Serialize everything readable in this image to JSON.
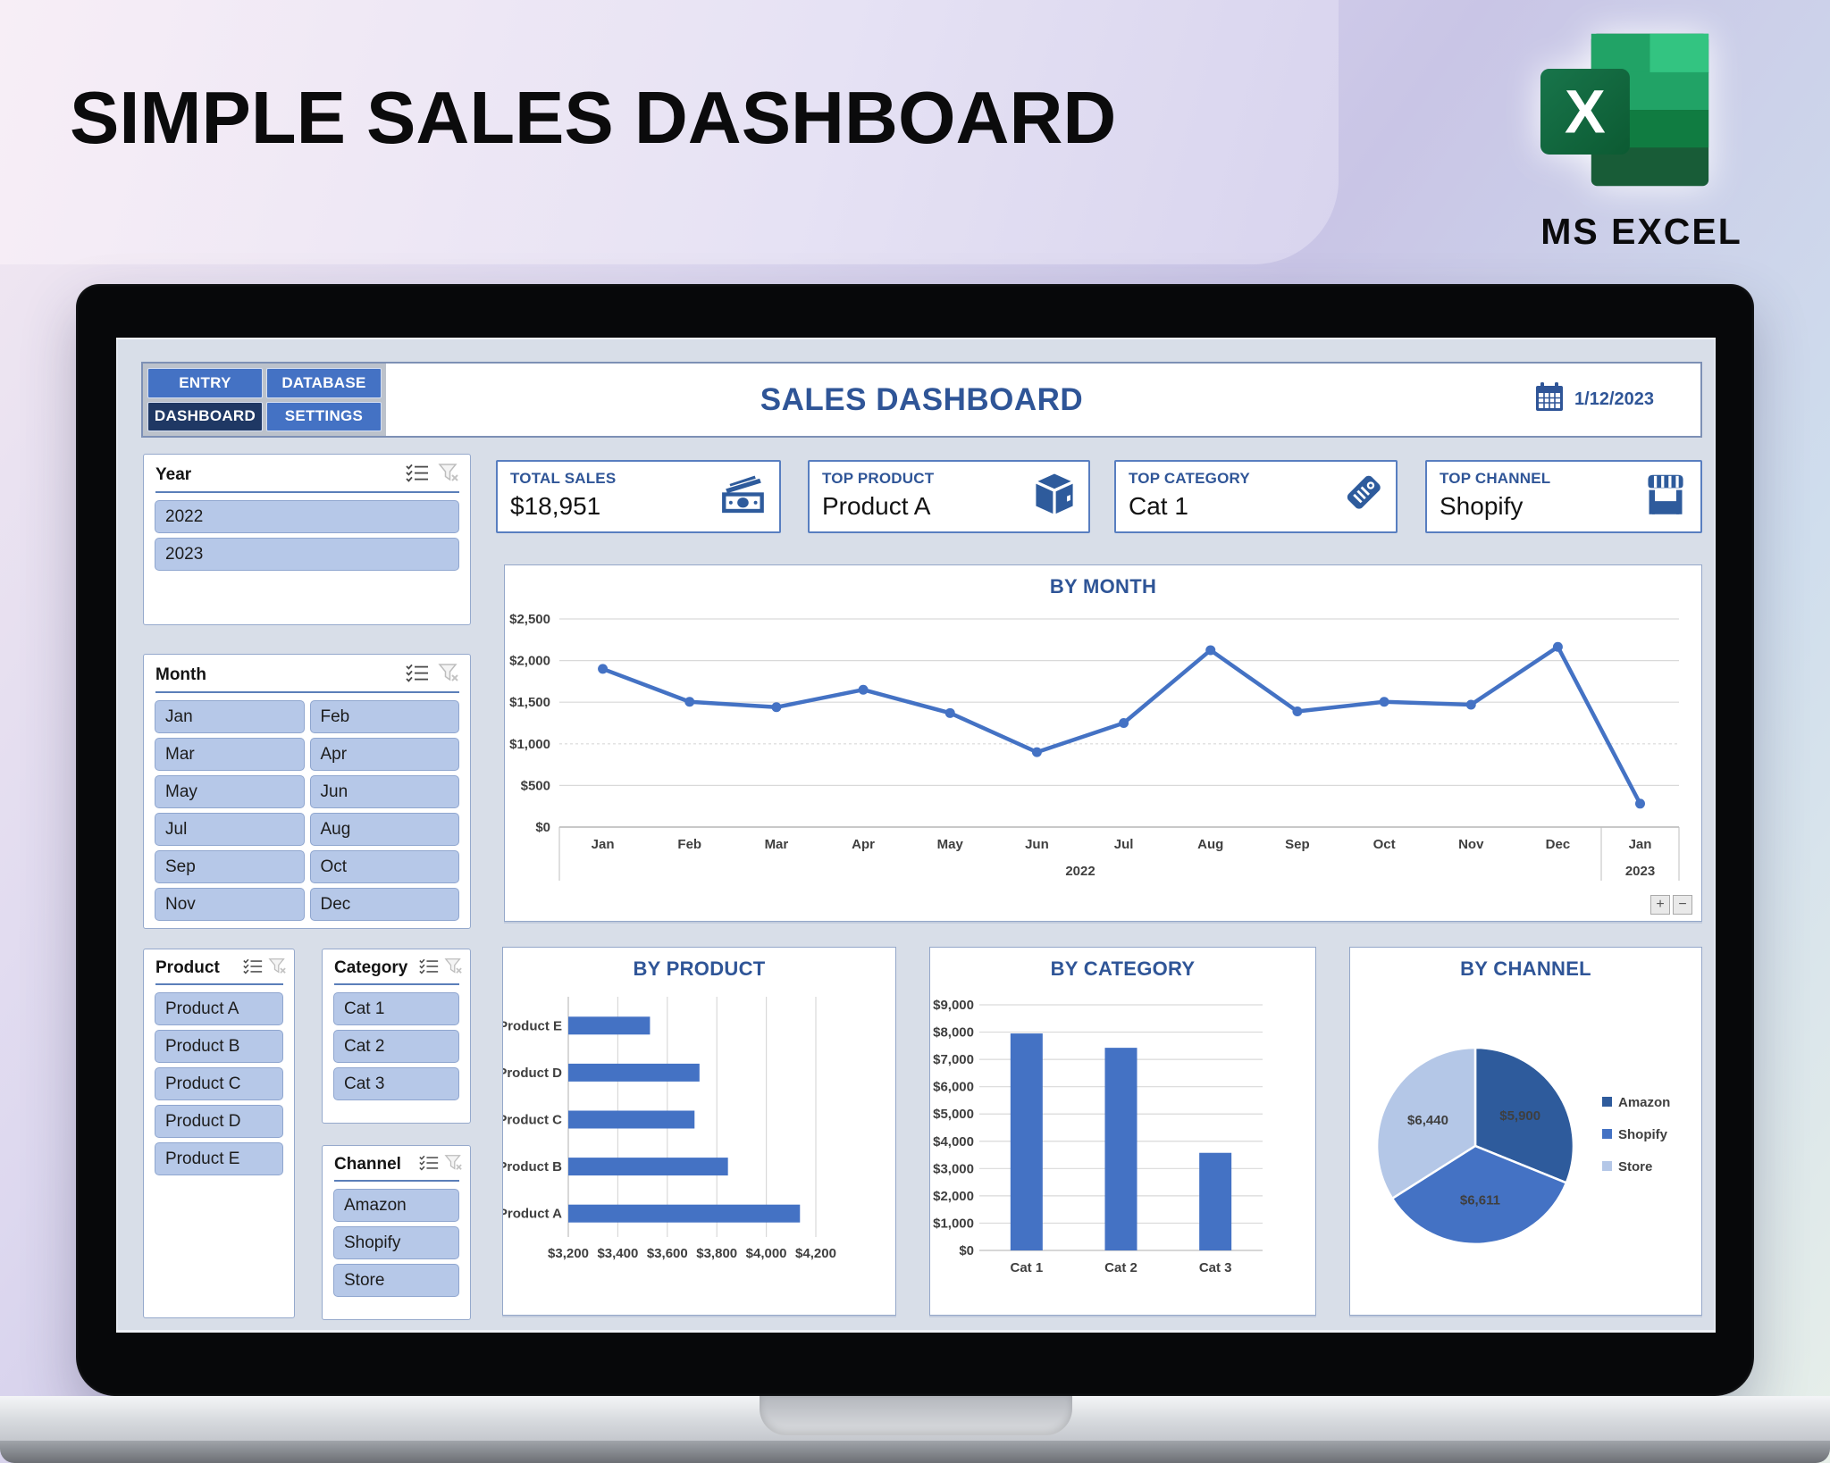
{
  "page": {
    "title": "SIMPLE SALES DASHBOARD",
    "badge": "MS EXCEL"
  },
  "nav": {
    "buttons": [
      {
        "label": "ENTRY",
        "active": false
      },
      {
        "label": "DATABASE",
        "active": false
      },
      {
        "label": "DASHBOARD",
        "active": true
      },
      {
        "label": "SETTINGS",
        "active": false
      }
    ]
  },
  "header": {
    "title": "SALES DASHBOARD",
    "date": "1/12/2023",
    "icon": "calendar-icon"
  },
  "slicers": {
    "icons": [
      "multiselect-icon",
      "clear-filter-icon"
    ],
    "year": {
      "label": "Year",
      "items": [
        "2022",
        "2023"
      ]
    },
    "month": {
      "label": "Month",
      "items": [
        "Jan",
        "Feb",
        "Mar",
        "Apr",
        "May",
        "Jun",
        "Jul",
        "Aug",
        "Sep",
        "Oct",
        "Nov",
        "Dec"
      ]
    },
    "product": {
      "label": "Product",
      "items": [
        "Product A",
        "Product B",
        "Product C",
        "Product D",
        "Product E"
      ]
    },
    "category": {
      "label": "Category",
      "items": [
        "Cat 1",
        "Cat 2",
        "Cat 3"
      ]
    },
    "channel": {
      "label": "Channel",
      "items": [
        "Amazon",
        "Shopify",
        "Store"
      ]
    }
  },
  "kpis": [
    {
      "label": "TOTAL SALES",
      "value": "$18,951",
      "icon": "cash-icon"
    },
    {
      "label": "TOP PRODUCT",
      "value": "Product A",
      "icon": "box-icon"
    },
    {
      "label": "TOP CATEGORY",
      "value": "Cat 1",
      "icon": "tag-icon"
    },
    {
      "label": "TOP CHANNEL",
      "value": "Shopify",
      "icon": "store-icon"
    }
  ],
  "colors": {
    "accent": "#4472c4",
    "accent_dark": "#1f3864",
    "title_blue": "#2f5597",
    "slicer_fill": "#b6c8e8",
    "excel_greens": [
      "#33c481",
      "#21a366",
      "#107c41",
      "#185c37"
    ]
  },
  "chart_data": [
    {
      "type": "line",
      "title": "BY MONTH",
      "x": [
        "Jan",
        "Feb",
        "Mar",
        "Apr",
        "May",
        "Jun",
        "Jul",
        "Aug",
        "Sep",
        "Oct",
        "Nov",
        "Dec",
        "Jan"
      ],
      "x_groups": [
        "2022",
        "2023"
      ],
      "values": [
        1900,
        1505,
        1440,
        1650,
        1370,
        900,
        1250,
        2125,
        1390,
        1505,
        1470,
        2165,
        281
      ],
      "ylim": [
        0,
        2500
      ],
      "yticks": [
        [
          0,
          "$0"
        ],
        [
          500,
          "$500"
        ],
        [
          1000,
          "$1,000"
        ],
        [
          1500,
          "$1,500"
        ],
        [
          2000,
          "$2,000"
        ],
        [
          2500,
          "$2,500"
        ]
      ],
      "series_color": "#4472c4",
      "grid": true,
      "zoom_controls": [
        "+",
        "−"
      ]
    },
    {
      "type": "bar-horizontal",
      "title": "BY PRODUCT",
      "categories": [
        "Product E",
        "Product D",
        "Product C",
        "Product B",
        "Product A"
      ],
      "values": [
        3530,
        3730,
        3710,
        3845,
        4136
      ],
      "xlim": [
        3200,
        4200
      ],
      "xticks": [
        [
          3200,
          "$3,200"
        ],
        [
          3400,
          "$3,400"
        ],
        [
          3600,
          "$3,600"
        ],
        [
          3800,
          "$3,800"
        ],
        [
          4000,
          "$4,000"
        ],
        [
          4200,
          "$4,200"
        ]
      ],
      "bar_color": "#4472c4",
      "grid": true
    },
    {
      "type": "bar",
      "title": "BY CATEGORY",
      "categories": [
        "Cat 1",
        "Cat 2",
        "Cat 3"
      ],
      "values": [
        7950,
        7425,
        3576
      ],
      "ylim": [
        0,
        9000
      ],
      "yticks": [
        [
          0,
          "$0"
        ],
        [
          1000,
          "$1,000"
        ],
        [
          2000,
          "$2,000"
        ],
        [
          3000,
          "$3,000"
        ],
        [
          4000,
          "$4,000"
        ],
        [
          5000,
          "$5,000"
        ],
        [
          6000,
          "$6,000"
        ],
        [
          7000,
          "$7,000"
        ],
        [
          8000,
          "$8,000"
        ],
        [
          9000,
          "$9,000"
        ]
      ],
      "bar_color": "#4472c4",
      "grid": true
    },
    {
      "type": "pie",
      "title": "BY CHANNEL",
      "slices": [
        {
          "name": "Amazon",
          "value": 5900,
          "label": "$5,900",
          "color": "#2e5b9c"
        },
        {
          "name": "Shopify",
          "value": 6611,
          "label": "$6,611",
          "color": "#4472c4"
        },
        {
          "name": "Store",
          "value": 6440,
          "label": "$6,440",
          "color": "#b4c7e7"
        }
      ],
      "legend_position": "right"
    }
  ]
}
